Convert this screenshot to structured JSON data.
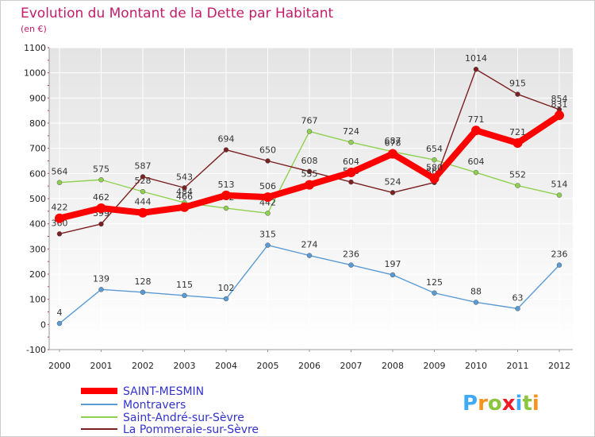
{
  "chart_data": {
    "type": "line",
    "title": "Evolution du Montant de la Dette par Habitant",
    "subtitle": "(en €)",
    "xlabel": "",
    "ylabel": "",
    "ylim": [
      -100,
      1100
    ],
    "y_ticks": [
      "-100",
      "0",
      "100",
      "200",
      "300",
      "400",
      "500",
      "600",
      "700",
      "800",
      "900",
      "1000",
      "1100"
    ],
    "categories": [
      "2000",
      "2001",
      "2002",
      "2003",
      "2004",
      "2005",
      "2006",
      "2007",
      "2008",
      "2009",
      "2010",
      "2011",
      "2012"
    ],
    "grid": true,
    "legend_position": "bottom-left",
    "series": [
      {
        "name": "SAINT-MESMIN",
        "color": "#ff0000",
        "values": [
          422,
          462,
          444,
          466,
          513,
          506,
          555,
          604,
          678,
          580,
          771,
          721,
          831
        ],
        "labels": [
          "422",
          "462",
          "444",
          "466",
          "513",
          "506",
          "555",
          "604",
          "678",
          "580",
          "771",
          "721",
          "831"
        ]
      },
      {
        "name": "Montravers",
        "color": "#5b9bd5",
        "values": [
          4,
          139,
          128,
          115,
          102,
          315,
          274,
          236,
          197,
          125,
          88,
          63,
          236
        ],
        "labels": [
          "4",
          "139",
          "128",
          "115",
          "102",
          "315",
          "274",
          "236",
          "197",
          "125",
          "88",
          "63",
          "236"
        ]
      },
      {
        "name": "Saint-André-sur-Sèvre",
        "color": "#8fd14f",
        "values": [
          564,
          575,
          528,
          484,
          462,
          442,
          767,
          724,
          687,
          654,
          604,
          552,
          514
        ],
        "labels": [
          "564",
          "575",
          "528",
          "484",
          "462",
          "442",
          "767",
          "724",
          "687",
          "654",
          "604",
          "552",
          "514"
        ]
      },
      {
        "name": "La Pommeraie-sur-Sèvre",
        "color": "#7b2020",
        "values": [
          360,
          399,
          587,
          543,
          694,
          650,
          608,
          566,
          524,
          564,
          1014,
          915,
          854
        ],
        "labels": [
          "360",
          "399",
          "587",
          "543",
          "694",
          "650",
          "608",
          "566",
          "524",
          "564",
          "1014",
          "915",
          "854"
        ]
      }
    ]
  },
  "logo": {
    "text": "Proxiti",
    "letter_colors": [
      "#3fa9f5",
      "#f7931e",
      "#8cc63f",
      "#ed1c24",
      "#3fa9f5",
      "#8cc63f",
      "#f7931e"
    ]
  }
}
